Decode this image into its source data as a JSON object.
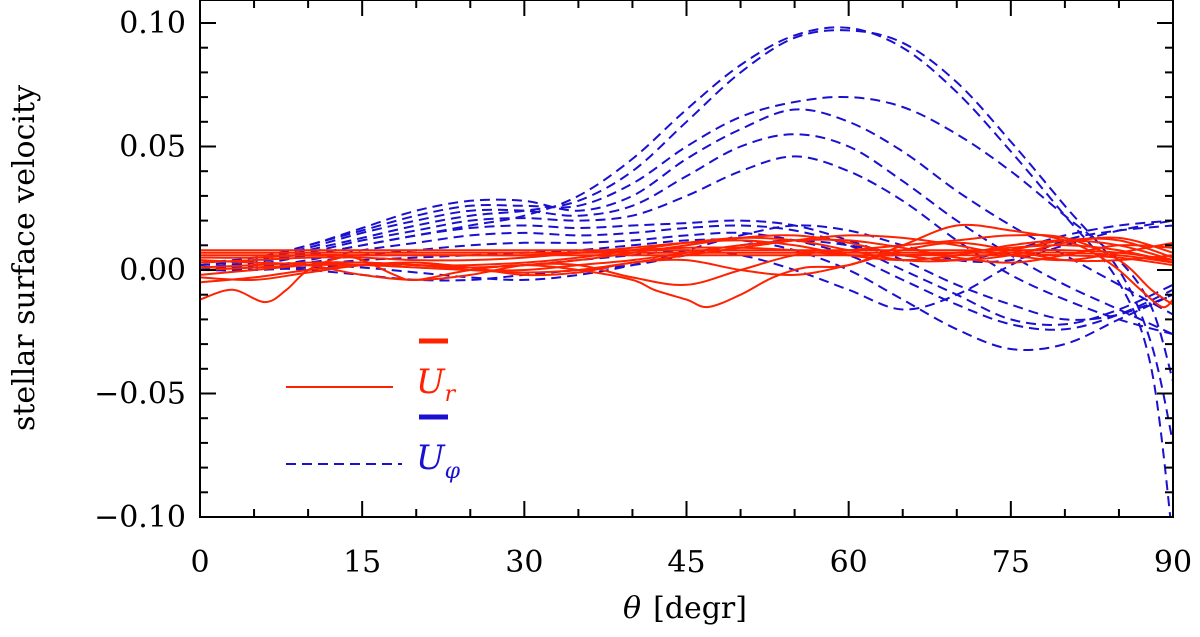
{
  "chart_data": {
    "type": "line",
    "xlabel_symbol": "θ",
    "xlabel_unit": "[degr]",
    "ylabel": "stellar surface velocity",
    "xlim": [
      0,
      90
    ],
    "ylim": [
      -0.1,
      0.1
    ],
    "xticks": [
      0,
      15,
      30,
      45,
      60,
      75,
      90
    ],
    "xtick_labels": [
      "0",
      "15",
      "30",
      "45",
      "60",
      "75",
      "90"
    ],
    "yticks": [
      0.1,
      0.05,
      0.0,
      -0.05,
      -0.1
    ],
    "ytick_labels": [
      "0.10",
      "0.05",
      "0.00",
      "−0.05",
      "−0.10"
    ],
    "grid": false,
    "legend_placement": "lower-left",
    "legend": [
      {
        "symbol": "U",
        "subscript": "r",
        "style": "solid",
        "color": "#ff2200"
      },
      {
        "symbol": "U",
        "subscript": "φ",
        "style": "dashed",
        "color": "#1a10d0"
      }
    ],
    "series": [
      {
        "group": "Ur",
        "color": "#ff2200",
        "style": "solid",
        "x": [
          0,
          5,
          10,
          15,
          20,
          25,
          30,
          35,
          40,
          45,
          50,
          55,
          60,
          65,
          70,
          75,
          80,
          85,
          90
        ],
        "y": [
          0.008,
          0.008,
          0.008,
          0.008,
          0.008,
          0.008,
          0.008,
          0.008,
          0.008,
          0.008,
          0.008,
          0.008,
          0.008,
          0.008,
          0.008,
          0.008,
          0.008,
          0.007,
          0.004
        ]
      },
      {
        "group": "Ur",
        "color": "#ff2200",
        "style": "solid",
        "x": [
          0,
          5,
          10,
          15,
          20,
          25,
          30,
          35,
          40,
          45,
          50,
          55,
          60,
          65,
          70,
          75,
          80,
          85,
          90
        ],
        "y": [
          0.007,
          0.007,
          0.007,
          0.007,
          0.007,
          0.007,
          0.007,
          0.007,
          0.007,
          0.007,
          0.007,
          0.007,
          0.007,
          0.007,
          0.007,
          0.007,
          0.007,
          0.006,
          0.003
        ]
      },
      {
        "group": "Ur",
        "color": "#ff2200",
        "style": "solid",
        "x": [
          0,
          5,
          10,
          15,
          20,
          25,
          30,
          35,
          40,
          45,
          50,
          55,
          60,
          65,
          70,
          75,
          80,
          85,
          90
        ],
        "y": [
          0.006,
          0.006,
          0.006,
          0.006,
          0.006,
          0.006,
          0.006,
          0.006,
          0.006,
          0.006,
          0.006,
          0.006,
          0.006,
          0.006,
          0.006,
          0.006,
          0.006,
          0.005,
          0.002
        ]
      },
      {
        "group": "Ur",
        "color": "#ff2200",
        "style": "solid",
        "x": [
          0,
          5,
          10,
          15,
          20,
          25,
          30,
          35,
          40,
          45,
          50,
          55,
          60,
          65,
          70,
          75,
          80,
          85,
          90
        ],
        "y": [
          0.005,
          0.005,
          0.006,
          0.006,
          0.006,
          0.006,
          0.006,
          0.007,
          0.008,
          0.009,
          0.009,
          0.008,
          0.006,
          0.006,
          0.007,
          0.009,
          0.01,
          0.008,
          0.003
        ]
      },
      {
        "group": "Ur",
        "color": "#ff2200",
        "style": "solid",
        "x": [
          0,
          5,
          10,
          15,
          20,
          25,
          30,
          35,
          40,
          45,
          50,
          55,
          60,
          65,
          70,
          75,
          80,
          85,
          90
        ],
        "y": [
          0.003,
          0.004,
          0.005,
          0.005,
          0.004,
          0.004,
          0.005,
          0.007,
          0.009,
          0.011,
          0.012,
          0.01,
          0.006,
          0.004,
          0.006,
          0.01,
          0.012,
          0.01,
          0.004
        ]
      },
      {
        "group": "Ur",
        "color": "#ff2200",
        "style": "solid",
        "x": [
          0,
          5,
          10,
          15,
          20,
          25,
          30,
          35,
          40,
          45,
          50,
          55,
          60,
          65,
          70,
          75,
          80,
          85,
          90
        ],
        "y": [
          0.001,
          0.002,
          0.003,
          0.003,
          0.002,
          0.002,
          0.003,
          0.005,
          0.008,
          0.011,
          0.013,
          0.012,
          0.008,
          0.004,
          0.004,
          0.008,
          0.012,
          0.012,
          0.005
        ]
      },
      {
        "group": "Ur",
        "color": "#ff2200",
        "style": "solid",
        "x": [
          0,
          5,
          10,
          15,
          20,
          25,
          30,
          35,
          40,
          45,
          50,
          55,
          60,
          65,
          70,
          75,
          80,
          85,
          90
        ],
        "y": [
          -0.002,
          0.0,
          0.002,
          0.003,
          0.002,
          0.001,
          0.002,
          0.004,
          0.007,
          0.01,
          0.013,
          0.014,
          0.011,
          0.006,
          0.004,
          0.006,
          0.011,
          0.013,
          0.007
        ]
      },
      {
        "group": "Ur",
        "color": "#ff2200",
        "style": "solid",
        "x": [
          0,
          5,
          10,
          15,
          20,
          25,
          30,
          35,
          40,
          45,
          50,
          55,
          60,
          65,
          70,
          75,
          80,
          85,
          90
        ],
        "y": [
          0.0,
          0.001,
          0.002,
          0.002,
          0.001,
          0.0,
          0.0,
          0.002,
          0.004,
          0.007,
          0.01,
          0.012,
          0.012,
          0.009,
          0.005,
          0.003,
          0.006,
          0.01,
          0.009
        ]
      },
      {
        "group": "Ur",
        "color": "#ff2200",
        "style": "solid",
        "x": [
          0,
          5,
          10,
          15,
          20,
          25,
          30,
          35,
          40,
          45,
          50,
          55,
          60,
          65,
          70,
          75,
          80,
          85,
          90
        ],
        "y": [
          -0.005,
          -0.003,
          0.0,
          0.002,
          0.002,
          0.0,
          -0.001,
          0.0,
          0.003,
          0.006,
          0.009,
          0.012,
          0.014,
          0.013,
          0.01,
          0.006,
          0.004,
          0.007,
          0.011
        ]
      },
      {
        "group": "Ur",
        "color": "#ff2200",
        "style": "solid",
        "x": [
          0,
          5,
          10,
          15,
          20,
          25,
          30,
          35,
          40,
          45,
          50,
          55,
          60,
          65,
          70,
          75,
          80,
          85,
          90
        ],
        "y": [
          -0.003,
          -0.004,
          -0.001,
          0.002,
          0.003,
          0.001,
          -0.002,
          -0.001,
          0.003,
          0.004,
          0.0,
          -0.002,
          0.002,
          0.008,
          0.011,
          0.008,
          0.004,
          0.004,
          0.006
        ]
      },
      {
        "group": "Ur",
        "color": "#ff2200",
        "style": "solid",
        "x": [
          0,
          3,
          6,
          8,
          10,
          13,
          15,
          18,
          20,
          25,
          30,
          35,
          40,
          42,
          45,
          47,
          50,
          53,
          56,
          60,
          65,
          70,
          75,
          80,
          83,
          85,
          87,
          89,
          90
        ],
        "y": [
          -0.012,
          -0.008,
          -0.013,
          -0.008,
          0.0,
          0.005,
          0.004,
          -0.002,
          -0.004,
          0.0,
          0.002,
          0.0,
          -0.004,
          -0.008,
          -0.012,
          -0.015,
          -0.01,
          -0.003,
          0.001,
          0.002,
          0.01,
          0.018,
          0.016,
          0.012,
          0.006,
          0.0,
          -0.008,
          -0.015,
          -0.012
        ]
      },
      {
        "group": "Ur",
        "color": "#ff2200",
        "style": "solid",
        "x": [
          0,
          5,
          10,
          15,
          20,
          25,
          30,
          35,
          40,
          45,
          50,
          55,
          60,
          65,
          70,
          75,
          80,
          85,
          88,
          90
        ],
        "y": [
          0.004,
          0.003,
          0.002,
          -0.002,
          -0.004,
          -0.002,
          0.002,
          0.002,
          -0.003,
          -0.006,
          0.0,
          0.006,
          0.008,
          0.01,
          0.012,
          0.014,
          0.013,
          0.004,
          -0.008,
          -0.014
        ]
      },
      {
        "group": "Uphi",
        "color": "#1a10d0",
        "style": "dashed",
        "x": [
          0,
          5,
          10,
          15,
          20,
          25,
          30,
          35,
          40,
          45,
          50,
          55,
          60,
          65,
          70,
          75,
          80,
          85,
          88,
          90
        ],
        "y": [
          0.0,
          0.002,
          0.006,
          0.01,
          0.014,
          0.018,
          0.022,
          0.03,
          0.045,
          0.065,
          0.083,
          0.095,
          0.098,
          0.09,
          0.072,
          0.048,
          0.022,
          -0.005,
          -0.04,
          -0.11
        ]
      },
      {
        "group": "Uphi",
        "color": "#1a10d0",
        "style": "dashed",
        "x": [
          0,
          5,
          10,
          15,
          20,
          25,
          30,
          35,
          40,
          45,
          50,
          55,
          60,
          65,
          70,
          75,
          80,
          85,
          88,
          90
        ],
        "y": [
          0.001,
          0.003,
          0.008,
          0.013,
          0.018,
          0.022,
          0.024,
          0.028,
          0.04,
          0.06,
          0.08,
          0.094,
          0.097,
          0.092,
          0.076,
          0.052,
          0.026,
          0.0,
          -0.03,
          -0.07
        ]
      },
      {
        "group": "Uphi",
        "color": "#1a10d0",
        "style": "dashed",
        "x": [
          0,
          5,
          10,
          15,
          20,
          25,
          30,
          35,
          40,
          45,
          50,
          55,
          60,
          65,
          70,
          75,
          80,
          85,
          88,
          90
        ],
        "y": [
          0.002,
          0.004,
          0.01,
          0.016,
          0.022,
          0.026,
          0.026,
          0.026,
          0.035,
          0.05,
          0.062,
          0.068,
          0.07,
          0.066,
          0.055,
          0.04,
          0.022,
          0.004,
          -0.015,
          -0.045
        ]
      },
      {
        "group": "Uphi",
        "color": "#1a10d0",
        "style": "dashed",
        "x": [
          0,
          5,
          10,
          15,
          20,
          25,
          30,
          35,
          40,
          45,
          50,
          55,
          60,
          65,
          70,
          75,
          80,
          85,
          90
        ],
        "y": [
          0.003,
          0.005,
          0.01,
          0.017,
          0.024,
          0.028,
          0.028,
          0.024,
          0.03,
          0.045,
          0.057,
          0.065,
          0.06,
          0.048,
          0.032,
          0.018,
          0.006,
          -0.006,
          -0.018
        ]
      },
      {
        "group": "Uphi",
        "color": "#1a10d0",
        "style": "dashed",
        "x": [
          0,
          5,
          10,
          15,
          20,
          25,
          30,
          35,
          40,
          45,
          50,
          55,
          60,
          65,
          70,
          75,
          80,
          85,
          90
        ],
        "y": [
          0.002,
          0.004,
          0.009,
          0.015,
          0.02,
          0.024,
          0.024,
          0.022,
          0.026,
          0.038,
          0.05,
          0.055,
          0.05,
          0.036,
          0.02,
          0.006,
          -0.006,
          -0.016,
          -0.026
        ]
      },
      {
        "group": "Uphi",
        "color": "#1a10d0",
        "style": "dashed",
        "x": [
          0,
          5,
          10,
          15,
          20,
          25,
          30,
          35,
          40,
          45,
          50,
          55,
          60,
          65,
          70,
          75,
          80,
          85,
          90
        ],
        "y": [
          0.001,
          0.003,
          0.007,
          0.012,
          0.016,
          0.02,
          0.021,
          0.02,
          0.022,
          0.03,
          0.04,
          0.046,
          0.04,
          0.028,
          0.012,
          -0.002,
          -0.012,
          -0.02,
          -0.026
        ]
      },
      {
        "group": "Uphi",
        "color": "#1a10d0",
        "style": "dashed",
        "x": [
          0,
          5,
          10,
          15,
          20,
          25,
          30,
          35,
          40,
          45,
          50,
          55,
          60,
          65,
          70,
          75,
          80,
          85,
          90
        ],
        "y": [
          0.0,
          0.002,
          0.006,
          0.01,
          0.014,
          0.017,
          0.018,
          0.017,
          0.018,
          0.019,
          0.02,
          0.018,
          0.012,
          0.004,
          -0.006,
          -0.014,
          -0.02,
          -0.018,
          -0.01
        ]
      },
      {
        "group": "Uphi",
        "color": "#1a10d0",
        "style": "dashed",
        "x": [
          0,
          5,
          10,
          15,
          20,
          25,
          30,
          35,
          40,
          45,
          50,
          55,
          60,
          65,
          70,
          75,
          80,
          85,
          90
        ],
        "y": [
          0.0,
          0.001,
          0.004,
          0.008,
          0.011,
          0.014,
          0.015,
          0.014,
          0.015,
          0.017,
          0.018,
          0.016,
          0.01,
          0.0,
          -0.01,
          -0.02,
          -0.022,
          -0.016,
          -0.006
        ]
      },
      {
        "group": "Uphi",
        "color": "#1a10d0",
        "style": "dashed",
        "x": [
          0,
          5,
          10,
          15,
          20,
          25,
          30,
          35,
          40,
          45,
          50,
          55,
          60,
          65,
          70,
          75,
          80,
          85,
          90
        ],
        "y": [
          0.0,
          0.001,
          0.003,
          0.006,
          0.008,
          0.01,
          0.011,
          0.011,
          0.012,
          0.014,
          0.015,
          0.012,
          0.006,
          -0.004,
          -0.014,
          -0.022,
          -0.024,
          -0.018,
          -0.008
        ]
      },
      {
        "group": "Uphi",
        "color": "#1a10d0",
        "style": "dashed",
        "x": [
          0,
          5,
          10,
          15,
          20,
          25,
          30,
          35,
          40,
          45,
          50,
          55,
          60,
          65,
          70,
          75,
          80,
          85,
          90
        ],
        "y": [
          0.0,
          0.0,
          0.002,
          0.004,
          0.005,
          0.006,
          0.007,
          0.008,
          0.01,
          0.012,
          0.012,
          0.008,
          0.0,
          -0.012,
          -0.024,
          -0.032,
          -0.03,
          -0.02,
          -0.01
        ]
      },
      {
        "group": "Uphi",
        "color": "#1a10d0",
        "style": "dashed",
        "x": [
          0,
          5,
          10,
          15,
          20,
          25,
          30,
          35,
          40,
          45,
          50,
          55,
          60,
          65,
          70,
          75,
          80,
          85,
          90
        ],
        "y": [
          0.0,
          0.0,
          0.001,
          0.002,
          0.002,
          0.001,
          0.002,
          0.004,
          0.006,
          0.008,
          0.006,
          0.0,
          -0.008,
          -0.016,
          -0.01,
          0.002,
          0.012,
          0.016,
          0.018
        ]
      },
      {
        "group": "Uphi",
        "color": "#1a10d0",
        "style": "dashed",
        "x": [
          0,
          5,
          10,
          15,
          20,
          25,
          30,
          35,
          40,
          45,
          50,
          55,
          60,
          65,
          70,
          75,
          80,
          85,
          90
        ],
        "y": [
          0.001,
          0.001,
          0.0,
          -0.002,
          -0.004,
          -0.004,
          -0.002,
          0.0,
          0.002,
          0.006,
          0.01,
          0.012,
          0.01,
          0.006,
          0.004,
          0.008,
          0.014,
          0.018,
          0.02
        ]
      },
      {
        "group": "Uphi",
        "color": "#1a10d0",
        "style": "dashed",
        "x": [
          0,
          5,
          10,
          15,
          20,
          25,
          30,
          35,
          40,
          45,
          50,
          55,
          60,
          65,
          70,
          75,
          80,
          85,
          90
        ],
        "y": [
          0.0,
          0.001,
          0.002,
          0.001,
          -0.001,
          -0.003,
          -0.004,
          -0.002,
          0.002,
          0.008,
          0.014,
          0.018,
          0.016,
          0.01,
          0.004,
          0.004,
          0.01,
          0.016,
          0.02
        ]
      }
    ]
  }
}
